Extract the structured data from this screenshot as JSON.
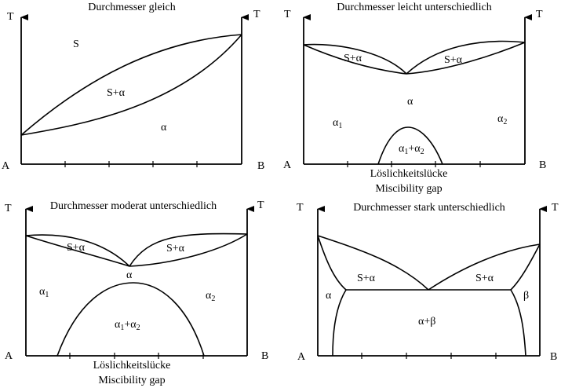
{
  "panels": [
    {
      "title": "Durchmesser gleich",
      "y_axis_left": "T",
      "y_axis_right": "T",
      "x_left": "A",
      "x_right": "B",
      "regions": {
        "liquid": "S",
        "two_phase": "S+α",
        "solid": "α"
      }
    },
    {
      "title": "Durchmesser leicht unterschiedlich",
      "y_axis_left": "T",
      "y_axis_right": "T",
      "x_left": "A",
      "x_right": "B",
      "regions": {
        "two_phase_left": "S+α",
        "two_phase_right": "S+α",
        "solid": "α",
        "alpha1": "α",
        "alpha1_sub": "1",
        "alpha2": "α",
        "alpha2_sub": "2",
        "gap_a": "α",
        "gap_a_sub": "1",
        "gap_plus": "+α",
        "gap_b_sub": "2"
      },
      "caption_de": "Löslichkeitslücke",
      "caption_en": "Miscibility gap"
    },
    {
      "title": "Durchmesser moderat unterschiedlich",
      "y_axis_left": "T",
      "y_axis_right": "T",
      "x_left": "A",
      "x_right": "B",
      "regions": {
        "two_phase_left": "S+α",
        "two_phase_right": "S+α",
        "solid": "α",
        "alpha1": "α",
        "alpha1_sub": "1",
        "alpha2": "α",
        "alpha2_sub": "2",
        "gap_a": "α",
        "gap_a_sub": "1",
        "gap_plus": "+α",
        "gap_b_sub": "2"
      },
      "caption_de": "Löslichkeitslücke",
      "caption_en": "Miscibility gap"
    },
    {
      "title": "Durchmesser stark unterschiedlich",
      "y_axis_left": "T",
      "y_axis_right": "T",
      "x_left": "A",
      "x_right": "B",
      "regions": {
        "two_phase_left": "S+α",
        "two_phase_right": "S+α",
        "alpha": "α",
        "beta": "β",
        "eutectic": "α+β"
      }
    }
  ]
}
